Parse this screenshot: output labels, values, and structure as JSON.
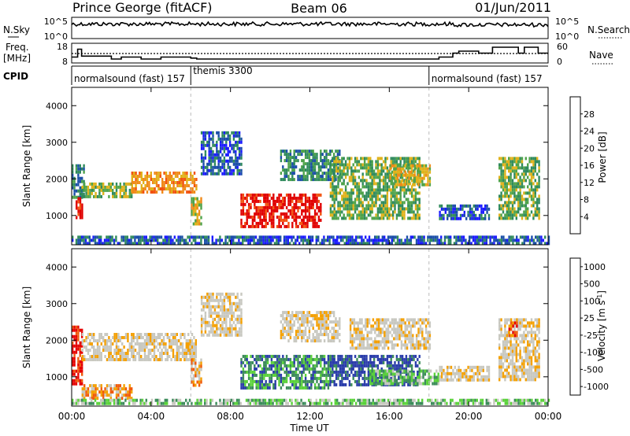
{
  "header": {
    "station": "Prince George (fitACF)",
    "beam": "Beam 06",
    "date": "01/Jun/2011"
  },
  "colors": {
    "power_scale": [
      "#1a1aff",
      "#1c4fa8",
      "#2f8a5c",
      "#4fa34a",
      "#e0b21a",
      "#f08a1a",
      "#f2520f",
      "#e00000"
    ],
    "velocity_scale": [
      "#e60000",
      "#f05a0a",
      "#f4a000",
      "#c8c8c0",
      "#c8c8c0",
      "#5ad23a",
      "#3c8c5a",
      "#2a3caa"
    ]
  },
  "summary": {
    "nsky": {
      "label": "N.Sky",
      "ticks": [
        "10^5",
        "10^0"
      ]
    },
    "nsearch": {
      "label": "N.Search",
      "ticks": [
        "10^5",
        "10^0"
      ]
    },
    "freq": {
      "label_line1": "Freq.",
      "label_line2": "[MHz]",
      "ticks": [
        "18",
        "8"
      ]
    },
    "nave": {
      "label": "Nave",
      "ticks": [
        "60",
        "0"
      ]
    },
    "freq_series": {
      "hours": [
        0,
        0.3,
        0.5,
        2.0,
        2.5,
        3.5,
        4.5,
        6.0,
        6.3,
        17.9,
        18.5,
        19.2,
        19.5,
        20.5,
        21.2,
        21.8,
        22.5,
        22.8,
        23.5,
        24
      ],
      "mhz": [
        11,
        15,
        11.5,
        10,
        11,
        10,
        11,
        10.5,
        10,
        10,
        11,
        13,
        14,
        13,
        16,
        16,
        13,
        16,
        13,
        13
      ]
    },
    "cpid": {
      "label": "CPID",
      "segments": [
        {
          "text": "normalsound (fast) 157",
          "start": 0,
          "end": 6
        },
        {
          "text": "themis 3300",
          "start": 6,
          "end": 18
        },
        {
          "text": "normalsound (fast) 157",
          "start": 18,
          "end": 24
        }
      ]
    }
  },
  "chart_data": [
    {
      "type": "heatmap",
      "title": "",
      "xlabel": "Time UT",
      "ylabel": "Slant Range [km]",
      "xlim": [
        0,
        24
      ],
      "ylim": [
        200,
        4500
      ],
      "x_ticks": [
        "00:00",
        "04:00",
        "08:00",
        "12:00",
        "16:00",
        "20:00",
        "00:00"
      ],
      "y_ticks": [
        "1000",
        "2000",
        "3000",
        "4000"
      ],
      "colorbar": {
        "label": "Power [dB]",
        "range": [
          0,
          32
        ],
        "ticks": [
          "4",
          "8",
          "12",
          "16",
          "20",
          "24",
          "28"
        ]
      },
      "features": [
        {
          "t0": 0.0,
          "t1": 0.6,
          "r0": 1500,
          "r1": 2400,
          "level": 2
        },
        {
          "t0": 0.2,
          "t1": 0.5,
          "r0": 900,
          "r1": 1500,
          "level": 7
        },
        {
          "t0": 0.5,
          "t1": 3.0,
          "r0": 1550,
          "r1": 1900,
          "level": 3
        },
        {
          "t0": 3.0,
          "t1": 6.3,
          "r0": 1600,
          "r1": 2200,
          "level": 5
        },
        {
          "t0": 6.0,
          "t1": 6.5,
          "r0": 800,
          "r1": 1500,
          "level": 4
        },
        {
          "t0": 6.5,
          "t1": 8.5,
          "r0": 2100,
          "r1": 3300,
          "level": 1
        },
        {
          "t0": 8.5,
          "t1": 12.5,
          "r0": 700,
          "r1": 1600,
          "level": 7
        },
        {
          "t0": 10.5,
          "t1": 13.5,
          "r0": 2000,
          "r1": 2800,
          "level": 2
        },
        {
          "t0": 13.0,
          "t1": 17.5,
          "r0": 900,
          "r1": 2600,
          "level": 3
        },
        {
          "t0": 16.0,
          "t1": 18.0,
          "r0": 1800,
          "r1": 2400,
          "level": 4
        },
        {
          "t0": 18.5,
          "t1": 21.0,
          "r0": 900,
          "r1": 1300,
          "level": 1
        },
        {
          "t0": 21.5,
          "t1": 23.5,
          "r0": 900,
          "r1": 2600,
          "level": 3
        },
        {
          "t0": 0.0,
          "t1": 24.0,
          "r0": 250,
          "r1": 450,
          "level": 1
        }
      ]
    },
    {
      "type": "heatmap",
      "title": "",
      "xlabel": "Time UT",
      "ylabel": "Slant Range [km]",
      "xlim": [
        0,
        24
      ],
      "ylim": [
        200,
        4500
      ],
      "x_ticks": [
        "00:00",
        "04:00",
        "08:00",
        "12:00",
        "16:00",
        "20:00",
        "00:00"
      ],
      "y_ticks": [
        "1000",
        "2000",
        "3000",
        "4000"
      ],
      "colorbar": {
        "label": "Velocity [m s^-1]",
        "ticks": [
          "1000",
          "500",
          "100",
          "25",
          "-25",
          "-100",
          "-500",
          "-1000"
        ]
      },
      "features": [
        {
          "t0": 0.0,
          "t1": 0.5,
          "r0": 800,
          "r1": 2400,
          "level": 0
        },
        {
          "t0": 0.5,
          "t1": 6.3,
          "r0": 1450,
          "r1": 2200,
          "level": 3
        },
        {
          "t0": 0.5,
          "t1": 3.0,
          "r0": 400,
          "r1": 800,
          "level": 2
        },
        {
          "t0": 6.0,
          "t1": 6.5,
          "r0": 800,
          "r1": 1500,
          "level": 2
        },
        {
          "t0": 6.5,
          "t1": 8.5,
          "r0": 2100,
          "r1": 3300,
          "level": 3
        },
        {
          "t0": 8.5,
          "t1": 13.0,
          "r0": 700,
          "r1": 1600,
          "level": 6
        },
        {
          "t0": 10.5,
          "t1": 13.5,
          "r0": 2000,
          "r1": 2800,
          "level": 3
        },
        {
          "t0": 13.0,
          "t1": 17.5,
          "r0": 800,
          "r1": 1600,
          "level": 7
        },
        {
          "t0": 14.0,
          "t1": 18.0,
          "r0": 1800,
          "r1": 2600,
          "level": 3
        },
        {
          "t0": 15.0,
          "t1": 18.5,
          "r0": 800,
          "r1": 1200,
          "level": 5
        },
        {
          "t0": 18.5,
          "t1": 21.0,
          "r0": 900,
          "r1": 1300,
          "level": 3
        },
        {
          "t0": 21.5,
          "t1": 23.5,
          "r0": 900,
          "r1": 2600,
          "level": 3
        },
        {
          "t0": 22.0,
          "t1": 22.4,
          "r0": 2100,
          "r1": 2600,
          "level": 1
        },
        {
          "t0": 0.0,
          "t1": 24.0,
          "r0": 250,
          "r1": 400,
          "level": 5
        }
      ]
    }
  ]
}
